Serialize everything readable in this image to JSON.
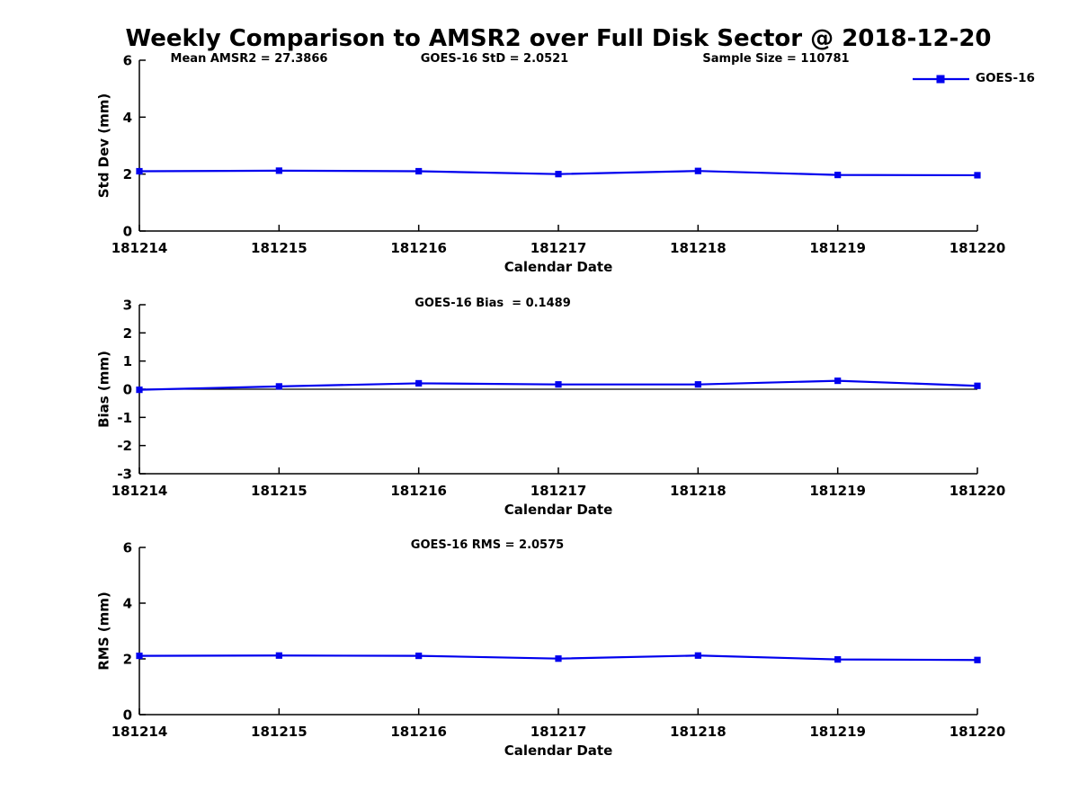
{
  "title": "Weekly Comparison to AMSR2 over Full Disk Sector @ 2018-12-20",
  "legend": {
    "label": "GOES-16",
    "color": "#0000ee"
  },
  "axis_color": "#000000",
  "chart_data": [
    {
      "type": "line",
      "name": "std-dev",
      "annotations": [
        "Mean AMSR2 = 27.3866",
        "GOES-16 StD = 2.0521",
        "Sample Size = 110781"
      ],
      "categories": [
        "181214",
        "181215",
        "181216",
        "181217",
        "181218",
        "181219",
        "181220"
      ],
      "series": [
        {
          "name": "GOES-16",
          "color": "#0000ee",
          "values": [
            2.1,
            2.12,
            2.1,
            2.0,
            2.11,
            1.97,
            1.96
          ]
        }
      ],
      "xlabel": "Calendar Date",
      "ylabel": "Std Dev (mm)",
      "ylim": [
        0,
        6
      ],
      "yticks": [
        0,
        2,
        4,
        6
      ],
      "grid": false,
      "zero_line": false,
      "legend_position": "top-right"
    },
    {
      "type": "line",
      "name": "bias",
      "annotations": [
        "GOES-16 Bias  = 0.1489"
      ],
      "categories": [
        "181214",
        "181215",
        "181216",
        "181217",
        "181218",
        "181219",
        "181220"
      ],
      "series": [
        {
          "name": "GOES-16",
          "color": "#0000ee",
          "values": [
            -0.02,
            0.1,
            0.21,
            0.17,
            0.17,
            0.3,
            0.12
          ]
        }
      ],
      "xlabel": "Calendar Date",
      "ylabel": "Bias (mm)",
      "ylim": [
        -3,
        3
      ],
      "yticks": [
        3,
        2,
        1,
        0,
        -1,
        -2,
        -3
      ],
      "grid": false,
      "zero_line": true,
      "legend_position": "none"
    },
    {
      "type": "line",
      "name": "rms",
      "annotations": [
        "GOES-16 RMS = 2.0575"
      ],
      "categories": [
        "181214",
        "181215",
        "181216",
        "181217",
        "181218",
        "181219",
        "181220"
      ],
      "series": [
        {
          "name": "GOES-16",
          "color": "#0000ee",
          "values": [
            2.11,
            2.12,
            2.11,
            2.01,
            2.12,
            1.98,
            1.96
          ]
        }
      ],
      "xlabel": "Calendar Date",
      "ylabel": "RMS (mm)",
      "ylim": [
        0,
        6
      ],
      "yticks": [
        0,
        2,
        4,
        6
      ],
      "grid": false,
      "zero_line": false,
      "legend_position": "none"
    }
  ]
}
